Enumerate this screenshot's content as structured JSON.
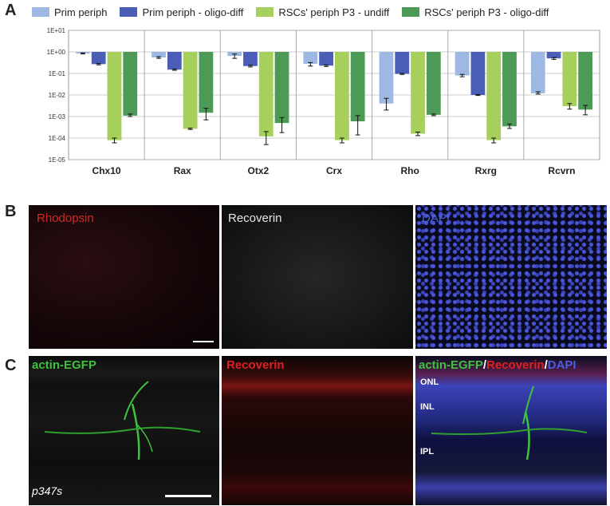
{
  "panels": {
    "a_letter": "A",
    "b_letter": "B",
    "c_letter": "C"
  },
  "chart_data": {
    "type": "bar",
    "yscale": "log",
    "ylim": [
      1e-05,
      10
    ],
    "yticks": [
      "1E+01",
      "1E+00",
      "1E-01",
      "1E-02",
      "1E-03",
      "1E-04",
      "1E-05"
    ],
    "categories": [
      "Chx10",
      "Rax",
      "Otx2",
      "Crx",
      "Rho",
      "Rxrg",
      "Rcvrn"
    ],
    "series": [
      {
        "name": "Prim periph",
        "color": "#9db8e3",
        "values": [
          0.85,
          0.55,
          0.65,
          0.28,
          0.004,
          0.08,
          0.012
        ],
        "err_lo": [
          0.8,
          0.5,
          0.5,
          0.22,
          0.002,
          0.07,
          0.011
        ],
        "err_hi": [
          0.9,
          0.6,
          0.8,
          0.32,
          0.007,
          0.09,
          0.014
        ]
      },
      {
        "name": "Prim periph - oligo-diff",
        "color": "#4a5eb8",
        "values": [
          0.27,
          0.15,
          0.22,
          0.23,
          0.095,
          0.01,
          0.5
        ],
        "err_lo": [
          0.25,
          0.14,
          0.2,
          0.21,
          0.09,
          0.0095,
          0.45
        ],
        "err_hi": [
          0.29,
          0.16,
          0.24,
          0.25,
          0.1,
          0.0105,
          0.55
        ]
      },
      {
        "name": "RSCs' periph P3 - undiff",
        "color": "#a6cf5c",
        "values": [
          8e-05,
          0.00027,
          0.00012,
          8e-05,
          0.00016,
          8e-05,
          0.003
        ],
        "err_lo": [
          6e-05,
          0.00025,
          5e-05,
          6e-05,
          0.00013,
          6e-05,
          0.0022
        ],
        "err_hi": [
          0.0001,
          0.00029,
          0.0002,
          0.0001,
          0.00019,
          0.0001,
          0.004
        ]
      },
      {
        "name": "RSCs' periph P3 - oligo-diff",
        "color": "#4c9a55",
        "values": [
          0.0011,
          0.0015,
          0.0005,
          0.0006,
          0.0012,
          0.00035,
          0.0021
        ],
        "err_lo": [
          0.001,
          0.0007,
          0.00018,
          0.00014,
          0.0011,
          0.00028,
          0.0012
        ],
        "err_hi": [
          0.0013,
          0.0024,
          0.0009,
          0.0011,
          0.0013,
          0.00045,
          0.0033
        ]
      }
    ]
  },
  "panel_b": {
    "labels": [
      "Rhodopsin",
      "Recoverin",
      "DAPI"
    ]
  },
  "panel_c": {
    "label_left": "actin-EGFP",
    "label_mid": "Recoverin",
    "merge_1": "actin-EGFP",
    "merge_sep1": "/",
    "merge_2": "Recoverin",
    "merge_sep2": "/",
    "merge_3": "DAPI",
    "layers": [
      "ONL",
      "INL",
      "IPL"
    ],
    "sample_id": "p347s"
  },
  "colors": {
    "red": "#e02020",
    "green": "#3fc23f",
    "blue": "#4a5ee0",
    "white": "#f0f0f0"
  }
}
